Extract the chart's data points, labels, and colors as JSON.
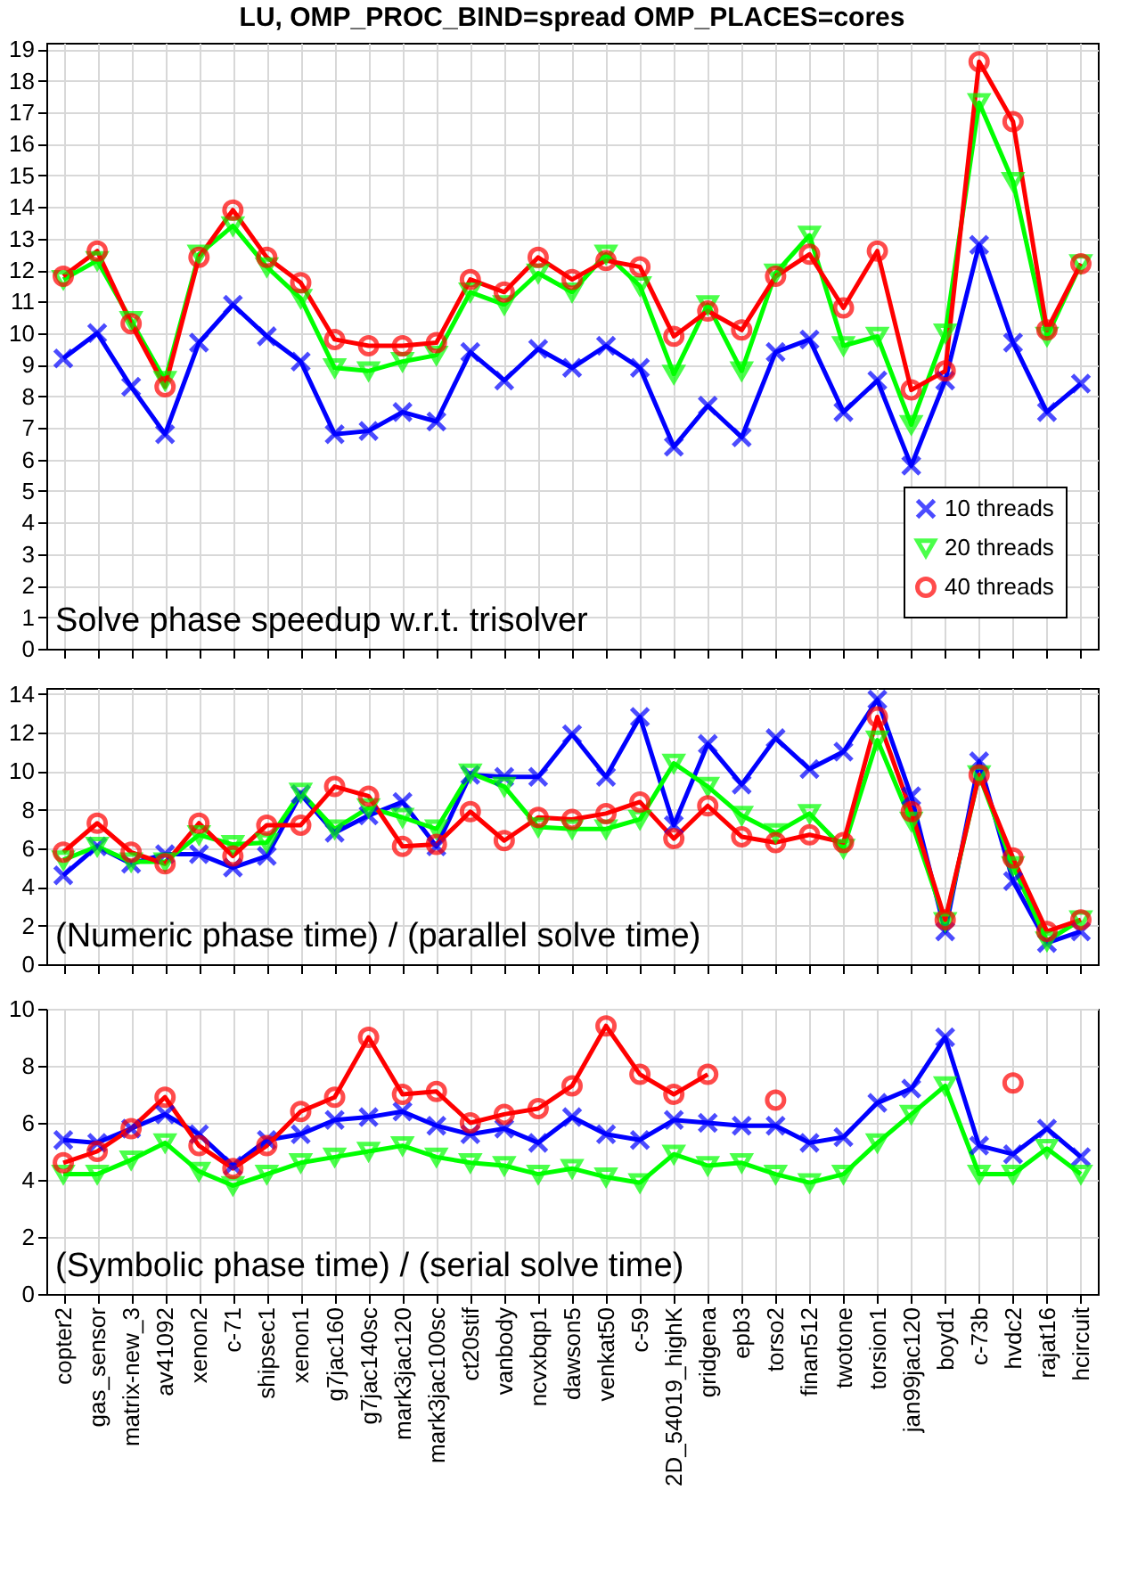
{
  "chart_data": [
    {
      "type": "line",
      "title": "LU, OMP_PROC_BIND=spread OMP_PLACES=cores",
      "annotations": [
        "Solve phase speedup w.r.t. trisolver"
      ],
      "categories": [
        null,
        null,
        null,
        null,
        null,
        null,
        null,
        null,
        null,
        null,
        null,
        null,
        null,
        null,
        null,
        null,
        null,
        null,
        null,
        null,
        null,
        null,
        null,
        null,
        null,
        null,
        null,
        null,
        null,
        null,
        null
      ],
      "ylim": [
        0,
        19.2
      ],
      "yticks": [
        0,
        1,
        2,
        3,
        4,
        5,
        6,
        7,
        8,
        9,
        10,
        11,
        12,
        13,
        14,
        15,
        16,
        17,
        18,
        19
      ],
      "grid": true,
      "legend": "bottom right",
      "tick_labels": "y",
      "series": [
        {
          "name": "10 threads",
          "color": "#0000ff",
          "marker": "cross",
          "values": [
            9.2,
            10.0,
            8.3,
            6.8,
            9.7,
            10.9,
            9.9,
            9.1,
            6.8,
            6.9,
            7.5,
            7.2,
            9.4,
            8.5,
            9.5,
            8.9,
            9.6,
            8.9,
            6.4,
            7.7,
            6.7,
            9.4,
            9.8,
            7.5,
            8.5,
            5.8,
            8.5,
            12.8,
            9.7,
            7.5,
            8.4
          ]
        },
        {
          "name": "20 threads",
          "color": "#00ff00",
          "marker": "triangle",
          "values": [
            11.7,
            12.3,
            10.4,
            8.5,
            12.5,
            13.4,
            12.1,
            11.1,
            8.9,
            8.8,
            9.1,
            9.3,
            11.3,
            10.9,
            11.9,
            11.3,
            12.5,
            11.5,
            8.7,
            10.9,
            8.8,
            11.9,
            13.1,
            9.6,
            9.9,
            7.1,
            10.0,
            17.3,
            14.8,
            9.9,
            12.2
          ]
        },
        {
          "name": "40 threads",
          "color": "#ff0000",
          "marker": "circle",
          "values": [
            11.8,
            12.6,
            10.3,
            8.3,
            12.4,
            13.9,
            12.4,
            11.6,
            9.8,
            9.6,
            9.6,
            9.7,
            11.7,
            11.3,
            12.4,
            11.7,
            12.3,
            12.1,
            9.9,
            10.7,
            10.1,
            11.8,
            12.5,
            10.8,
            12.6,
            8.2,
            8.8,
            18.6,
            16.7,
            10.1,
            12.2
          ]
        }
      ]
    },
    {
      "type": "line",
      "annotations": [
        "(Numeric phase time) / (parallel solve time)"
      ],
      "categories": [
        null,
        null,
        null,
        null,
        null,
        null,
        null,
        null,
        null,
        null,
        null,
        null,
        null,
        null,
        null,
        null,
        null,
        null,
        null,
        null,
        null,
        null,
        null,
        null,
        null,
        null,
        null,
        null,
        null,
        null,
        null
      ],
      "ylim": [
        0,
        14.3
      ],
      "yticks": [
        0,
        2,
        4,
        6,
        8,
        10,
        12,
        14
      ],
      "grid": true,
      "tick_labels": "y",
      "series": [
        {
          "color": "#0000ff",
          "marker": "cross",
          "values": [
            4.6,
            6.1,
            5.2,
            5.7,
            5.7,
            5.0,
            5.6,
            8.8,
            6.8,
            7.7,
            8.4,
            6.1,
            9.8,
            9.7,
            9.7,
            11.9,
            9.7,
            12.8,
            7.2,
            11.4,
            9.3,
            11.7,
            10.1,
            11.0,
            13.7,
            8.7,
            1.7,
            10.5,
            4.3,
            1.1,
            1.7
          ]
        },
        {
          "color": "#00ff00",
          "marker": "triangle",
          "values": [
            5.4,
            6.1,
            5.3,
            5.3,
            6.7,
            6.2,
            6.3,
            8.9,
            7.0,
            8.1,
            7.6,
            7.0,
            9.9,
            9.2,
            7.1,
            7.0,
            7.0,
            7.5,
            10.4,
            9.2,
            7.7,
            6.8,
            7.8,
            6.0,
            11.6,
            7.4,
            2.2,
            9.8,
            5.1,
            1.2,
            2.3
          ]
        },
        {
          "color": "#ff0000",
          "marker": "circle",
          "values": [
            5.8,
            7.3,
            5.8,
            5.2,
            7.3,
            5.6,
            7.2,
            7.2,
            9.2,
            8.7,
            6.1,
            6.2,
            7.9,
            6.4,
            7.6,
            7.5,
            7.8,
            8.4,
            6.5,
            8.2,
            6.6,
            6.3,
            6.7,
            6.3,
            12.8,
            7.9,
            2.3,
            9.8,
            5.5,
            1.7,
            2.3
          ]
        }
      ]
    },
    {
      "type": "line",
      "annotations": [
        "(Symbolic phase time) / (serial solve time)"
      ],
      "categories": [
        "copter2",
        "gas_sensor",
        "matrix-new_3",
        "av41092",
        "xenon2",
        "c-71",
        "shipsec1",
        "xenon1",
        "g7jac160",
        "g7jac140sc",
        "mark3jac120",
        "mark3jac100sc",
        "ct20stif",
        "vanbody",
        "ncvxbqp1",
        "dawson5",
        "venkat50",
        "c-59",
        "2D_54019_highK",
        "gridgena",
        "epb3",
        "torso2",
        "finan512",
        "twotone",
        "torsion1",
        "jan99jac120",
        "boyd1",
        "c-73b",
        "hvdc2",
        "rajat16",
        "hcircuit"
      ],
      "ylim": [
        0,
        10
      ],
      "yticks": [
        0,
        2,
        4,
        6,
        8,
        10
      ],
      "grid": true,
      "series": [
        {
          "color": "#0000ff",
          "marker": "cross",
          "values": [
            5.4,
            5.3,
            5.8,
            6.3,
            5.6,
            4.5,
            5.4,
            5.6,
            6.1,
            6.2,
            6.4,
            5.9,
            5.6,
            5.8,
            5.3,
            6.2,
            5.6,
            5.4,
            6.1,
            6.0,
            5.9,
            5.9,
            5.3,
            5.5,
            6.7,
            7.2,
            9.0,
            5.2,
            4.9,
            5.8,
            4.8
          ]
        },
        {
          "color": "#00ff00",
          "marker": "triangle",
          "values": [
            4.2,
            4.2,
            4.7,
            5.3,
            4.3,
            3.8,
            4.2,
            4.6,
            4.8,
            5.0,
            5.2,
            4.8,
            4.6,
            4.5,
            4.2,
            4.4,
            4.1,
            3.9,
            4.9,
            4.5,
            4.6,
            4.2,
            3.9,
            4.2,
            5.3,
            6.3,
            7.3,
            4.2,
            4.2,
            5.1,
            4.2
          ]
        },
        {
          "color": "#ff0000",
          "marker": "circle",
          "values": [
            4.6,
            5.0,
            5.8,
            6.9,
            5.2,
            4.4,
            5.2,
            6.4,
            6.9,
            9.0,
            7.0,
            7.1,
            6.0,
            6.3,
            6.5,
            7.3,
            9.4,
            7.7,
            7.0,
            7.7,
            null,
            6.8,
            null,
            null,
            null,
            null,
            null,
            null,
            7.4,
            null,
            null
          ]
        }
      ]
    }
  ]
}
